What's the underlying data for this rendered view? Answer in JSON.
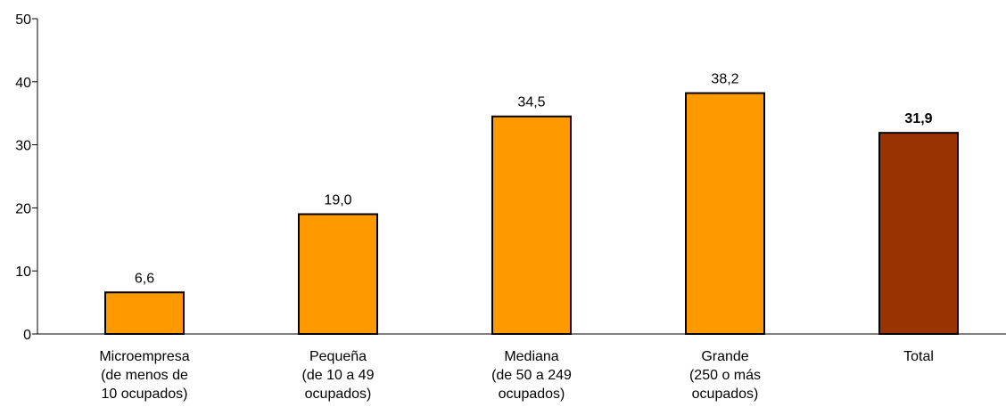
{
  "chart_data": {
    "type": "bar",
    "title": "",
    "xlabel": "",
    "ylabel": "",
    "ylim": [
      0,
      50
    ],
    "yticks": [
      0,
      10,
      20,
      30,
      40,
      50
    ],
    "grid": false,
    "legend": "none",
    "categories": [
      [
        "Microempresa",
        "(de menos de",
        "10 ocupados)"
      ],
      [
        "Pequeña",
        "(de 10 a 49",
        "ocupados)"
      ],
      [
        "Mediana",
        "(de 50 a 249",
        "ocupados)"
      ],
      [
        "Grande",
        "(250 o más",
        "ocupados)"
      ],
      [
        "Total"
      ]
    ],
    "values": [
      6.6,
      19.0,
      34.5,
      38.2,
      31.9
    ],
    "value_labels": [
      "6,6",
      "19,0",
      "34,5",
      "38,2",
      "31,9"
    ],
    "bold_labels": [
      false,
      false,
      false,
      false,
      true
    ],
    "colors": [
      "#FF9900",
      "#FF9900",
      "#FF9900",
      "#FF9900",
      "#993300"
    ]
  }
}
